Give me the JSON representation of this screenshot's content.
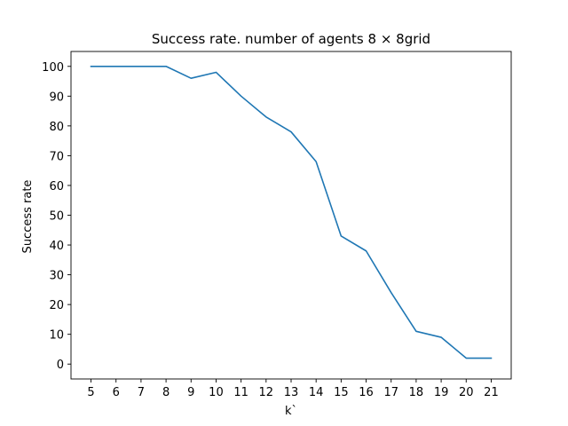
{
  "chart_data": {
    "type": "line",
    "title": "Success rate. number of agents 8 × 8grid",
    "xlabel": "k`",
    "ylabel": "Success rate",
    "xlim": [
      4.2,
      21.8
    ],
    "ylim": [
      -5,
      105
    ],
    "xticks": [
      5,
      6,
      7,
      8,
      9,
      10,
      11,
      12,
      13,
      14,
      15,
      16,
      17,
      18,
      19,
      20,
      21
    ],
    "yticks": [
      0,
      10,
      20,
      30,
      40,
      50,
      60,
      70,
      80,
      90,
      100
    ],
    "grid": false,
    "legend": "none",
    "series": [
      {
        "color": "#1f77b4",
        "x": [
          5,
          6,
          7,
          8,
          9,
          10,
          11,
          12,
          13,
          14,
          15,
          16,
          17,
          18,
          19,
          20,
          21
        ],
        "y": [
          100,
          100,
          100,
          100,
          96,
          98,
          90,
          83,
          78,
          68,
          43,
          38,
          24,
          11,
          9,
          2,
          2
        ]
      }
    ]
  }
}
